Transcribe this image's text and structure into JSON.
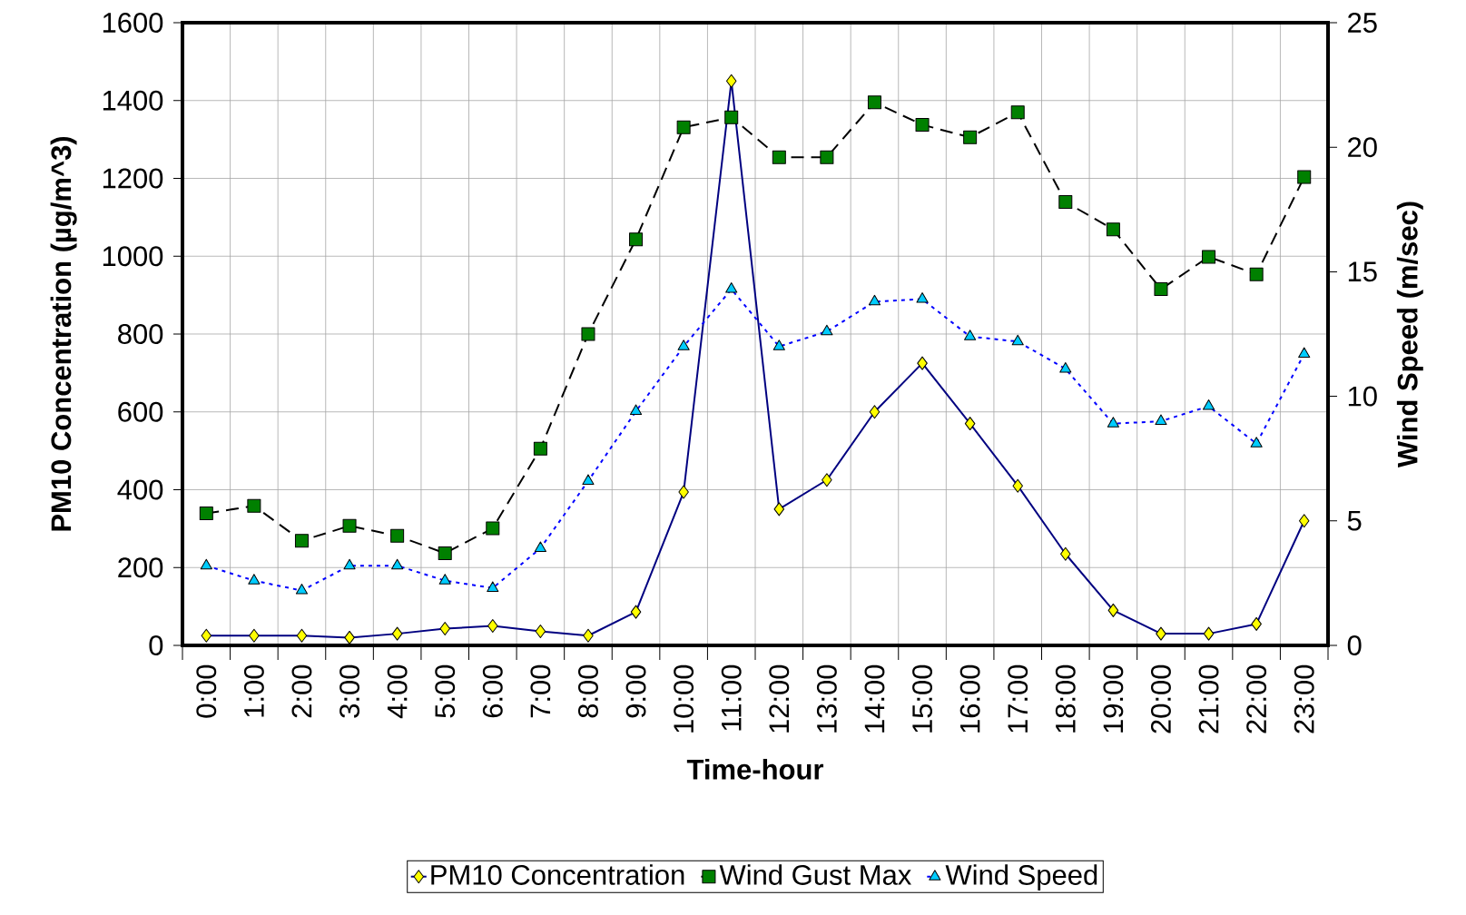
{
  "chart_data": {
    "type": "line",
    "xlabel": "Time-hour",
    "ylabel": "PM10 Concentration (µg/m^3)",
    "y2label": "Wind Speed (m/sec)",
    "categories": [
      "0:00",
      "1:00",
      "2:00",
      "3:00",
      "4:00",
      "5:00",
      "6:00",
      "7:00",
      "8:00",
      "9:00",
      "10:00",
      "11:00",
      "12:00",
      "13:00",
      "14:00",
      "15:00",
      "16:00",
      "17:00",
      "18:00",
      "19:00",
      "20:00",
      "21:00",
      "22:00",
      "23:00"
    ],
    "series": [
      {
        "name": "PM10 Concentration",
        "color": "#000080",
        "marker": "diamond",
        "line_style": "solid",
        "values": [
          25,
          25,
          25,
          20,
          30,
          43,
          50,
          36,
          25,
          86,
          394,
          1450,
          350,
          425,
          600,
          725,
          570,
          410,
          235,
          90,
          30,
          30,
          55,
          320
        ]
      },
      {
        "name": "Wind Gust Max",
        "color": "#000000",
        "marker": "square",
        "line_style": "dashed",
        "axis": "y2",
        "values": [
          5.3,
          5.6,
          4.2,
          4.8,
          4.4,
          3.7,
          4.7,
          7.9,
          12.5,
          16.3,
          20.8,
          21.2,
          19.6,
          19.6,
          21.8,
          20.9,
          20.4,
          21.4,
          17.8,
          16.7,
          14.3,
          15.6,
          14.9,
          18.8
        ]
      },
      {
        "name": "Wind Speed",
        "color": "#0000ff",
        "marker": "triangle",
        "line_style": "dotted",
        "axis": "y2",
        "values": [
          3.2,
          2.6,
          2.2,
          3.2,
          3.2,
          2.6,
          2.3,
          3.9,
          6.6,
          9.4,
          12.0,
          14.3,
          12.0,
          12.6,
          13.8,
          13.9,
          12.4,
          12.2,
          11.1,
          8.9,
          9.0,
          9.6,
          8.1,
          11.7
        ]
      }
    ],
    "ylim": [
      0,
      1600
    ],
    "yticks": [
      0,
      200,
      400,
      600,
      800,
      1000,
      1200,
      1400,
      1600
    ],
    "y2lim": [
      0,
      25
    ],
    "y2ticks": [
      0,
      5,
      10,
      15,
      20,
      25
    ],
    "grid": true,
    "legend": "bottom"
  }
}
